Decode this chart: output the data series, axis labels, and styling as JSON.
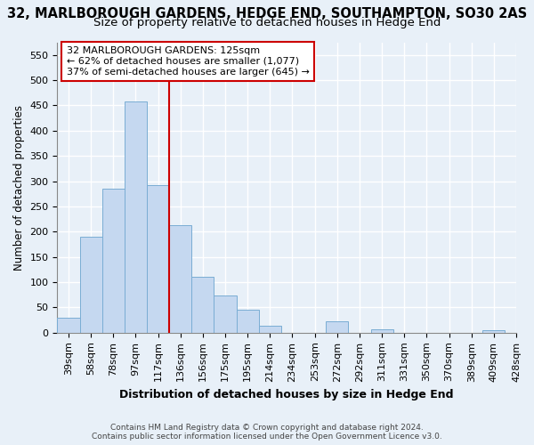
{
  "title1": "32, MARLBOROUGH GARDENS, HEDGE END, SOUTHAMPTON, SO30 2AS",
  "title2": "Size of property relative to detached houses in Hedge End",
  "xlabel": "Distribution of detached houses by size in Hedge End",
  "ylabel": "Number of detached properties",
  "bar_values": [
    30,
    190,
    285,
    457,
    293,
    213,
    110,
    74,
    46,
    14,
    0,
    0,
    22,
    0,
    7,
    0,
    0,
    0,
    0,
    5
  ],
  "bin_labels": [
    "39sqm",
    "58sqm",
    "78sqm",
    "97sqm",
    "117sqm",
    "136sqm",
    "156sqm",
    "175sqm",
    "195sqm",
    "214sqm",
    "234sqm",
    "253sqm",
    "272sqm",
    "292sqm",
    "311sqm",
    "331sqm",
    "350sqm",
    "370sqm",
    "389sqm",
    "409sqm",
    "428sqm"
  ],
  "bar_color": "#c5d8f0",
  "bar_edge_color": "#7aadd4",
  "annotation_text1": "32 MARLBOROUGH GARDENS: 125sqm",
  "annotation_text2": "← 62% of detached houses are smaller (1,077)",
  "annotation_text3": "37% of semi-detached houses are larger (645) →",
  "annotation_box_color": "#ffffff",
  "annotation_border_color": "#cc0000",
  "vline_color": "#cc0000",
  "ylim": [
    0,
    575
  ],
  "yticks": [
    0,
    50,
    100,
    150,
    200,
    250,
    300,
    350,
    400,
    450,
    500,
    550
  ],
  "footer1": "Contains HM Land Registry data © Crown copyright and database right 2024.",
  "footer2": "Contains public sector information licensed under the Open Government Licence v3.0.",
  "bg_color": "#e8f0f8",
  "grid_color": "#ffffff",
  "title1_fontsize": 10.5,
  "title2_fontsize": 9.5,
  "xlabel_fontsize": 9,
  "ylabel_fontsize": 8.5,
  "tick_fontsize": 8,
  "annotation_fontsize": 8,
  "footer_fontsize": 6.5
}
